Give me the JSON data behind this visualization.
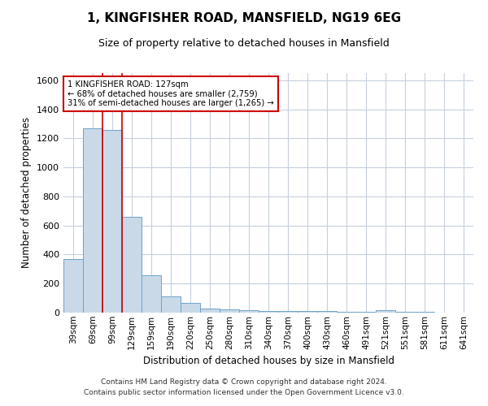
{
  "title": "1, KINGFISHER ROAD, MANSFIELD, NG19 6EG",
  "subtitle": "Size of property relative to detached houses in Mansfield",
  "xlabel": "Distribution of detached houses by size in Mansfield",
  "ylabel": "Number of detached properties",
  "categories": [
    "39sqm",
    "69sqm",
    "99sqm",
    "129sqm",
    "159sqm",
    "190sqm",
    "220sqm",
    "250sqm",
    "280sqm",
    "310sqm",
    "340sqm",
    "370sqm",
    "400sqm",
    "430sqm",
    "460sqm",
    "491sqm",
    "521sqm",
    "551sqm",
    "581sqm",
    "611sqm",
    "641sqm"
  ],
  "values": [
    370,
    1270,
    1260,
    660,
    260,
    110,
    65,
    30,
    20,
    15,
    10,
    10,
    10,
    10,
    5,
    5,
    15,
    5,
    3,
    2,
    2
  ],
  "bar_color": "#c9d9e8",
  "bar_edge_color": "#6ea3c8",
  "highlight_index": 2,
  "highlight_line_color": "#cc0000",
  "annotation_line1": "1 KINGFISHER ROAD: 127sqm",
  "annotation_line2": "← 68% of detached houses are smaller (2,759)",
  "annotation_line3": "31% of semi-detached houses are larger (1,265) →",
  "annotation_box_color": "white",
  "annotation_box_edge_color": "#cc0000",
  "ylim": [
    0,
    1650
  ],
  "yticks": [
    0,
    200,
    400,
    600,
    800,
    1000,
    1200,
    1400,
    1600
  ],
  "footer_text": "Contains HM Land Registry data © Crown copyright and database right 2024.\nContains public sector information licensed under the Open Government Licence v3.0.",
  "bg_color": "white",
  "grid_color": "#c8d0dc"
}
